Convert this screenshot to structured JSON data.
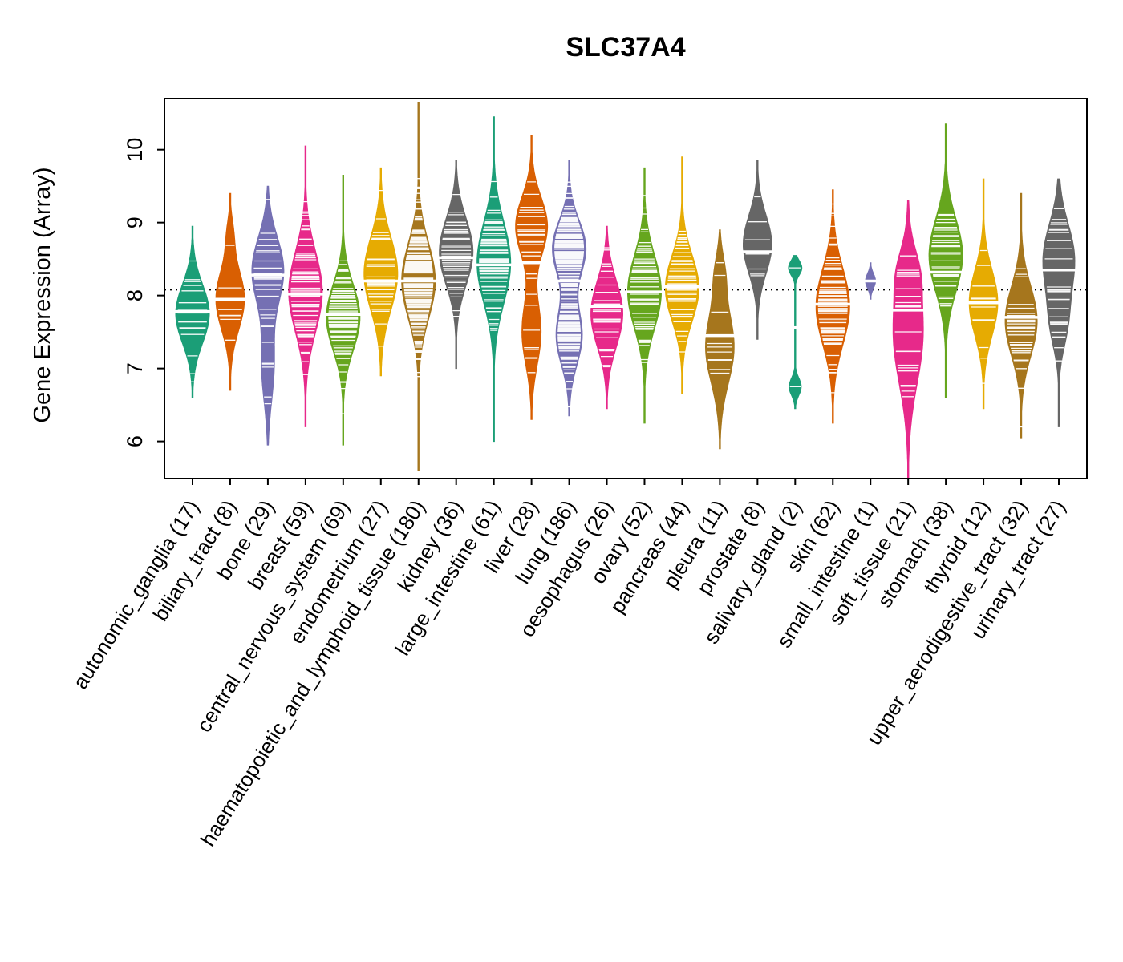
{
  "title": "SLC37A4",
  "chart_data": {
    "type": "violin",
    "title": "SLC37A4",
    "ylabel": "Gene Expression (Array)",
    "xlabel": "",
    "ylim": [
      5.49,
      10.7
    ],
    "yticks": [
      6,
      7,
      8,
      9,
      10
    ],
    "grid": false,
    "legend": "none",
    "reference_line_y": 8.08,
    "palette": [
      "#1B9E77",
      "#D95F02",
      "#7570B3",
      "#E7298A",
      "#66A61E",
      "#E6AB02",
      "#A6761D",
      "#666666"
    ],
    "groups": [
      {
        "label": "autonomic_ganglia",
        "n": 17,
        "color": "#1B9E77",
        "min": 6.6,
        "max": 8.95,
        "median": 7.78,
        "width": 1,
        "modes": [
          {
            "mu": 7.75,
            "s": 0.4,
            "w": 1
          }
        ]
      },
      {
        "label": "biliary_tract",
        "n": 8,
        "color": "#D95F02",
        "min": 6.7,
        "max": 9.4,
        "median": 7.95,
        "width": 0.85,
        "modes": [
          {
            "mu": 7.95,
            "s": 0.42,
            "w": 1
          },
          {
            "mu": 8.85,
            "s": 0.22,
            "w": 0.18
          }
        ]
      },
      {
        "label": "bone",
        "n": 29,
        "color": "#7570B3",
        "min": 5.95,
        "max": 9.5,
        "median": 8.28,
        "width": 0.95,
        "modes": [
          {
            "mu": 8.35,
            "s": 0.45,
            "w": 1
          },
          {
            "mu": 7.05,
            "s": 0.5,
            "w": 0.4
          }
        ]
      },
      {
        "label": "breast",
        "n": 59,
        "color": "#E7298A",
        "min": 6.2,
        "max": 10.05,
        "median": 8.02,
        "width": 1,
        "modes": [
          {
            "mu": 8.05,
            "s": 0.55,
            "w": 1
          }
        ]
      },
      {
        "label": "central_nervous_system",
        "n": 69,
        "color": "#66A61E",
        "min": 5.95,
        "max": 9.65,
        "median": 7.74,
        "width": 1,
        "modes": [
          {
            "mu": 7.7,
            "s": 0.45,
            "w": 1
          }
        ]
      },
      {
        "label": "endometrium",
        "n": 27,
        "color": "#E6AB02",
        "min": 6.9,
        "max": 9.75,
        "median": 8.2,
        "width": 1,
        "modes": [
          {
            "mu": 8.3,
            "s": 0.5,
            "w": 1
          }
        ]
      },
      {
        "label": "haematopoietic_and_lymphoid_tissue",
        "n": 180,
        "color": "#A6761D",
        "min": 5.6,
        "max": 10.65,
        "median": 8.2,
        "width": 1,
        "modes": [
          {
            "mu": 8.2,
            "s": 0.52,
            "w": 1
          }
        ]
      },
      {
        "label": "kidney",
        "n": 36,
        "color": "#666666",
        "min": 7.0,
        "max": 9.85,
        "median": 8.52,
        "width": 1,
        "modes": [
          {
            "mu": 8.6,
            "s": 0.45,
            "w": 1
          }
        ]
      },
      {
        "label": "large_intestine",
        "n": 61,
        "color": "#1B9E77",
        "min": 6.0,
        "max": 10.45,
        "median": 8.42,
        "width": 1,
        "modes": [
          {
            "mu": 8.45,
            "s": 0.55,
            "w": 1
          }
        ]
      },
      {
        "label": "liver",
        "n": 28,
        "color": "#D95F02",
        "min": 6.3,
        "max": 10.2,
        "median": 8.45,
        "width": 0.95,
        "modes": [
          {
            "mu": 8.95,
            "s": 0.4,
            "w": 1
          },
          {
            "mu": 7.5,
            "s": 0.45,
            "w": 0.6
          }
        ]
      },
      {
        "label": "lung",
        "n": 186,
        "color": "#7570B3",
        "min": 6.35,
        "max": 9.85,
        "median": 8.2,
        "width": 1,
        "modes": [
          {
            "mu": 8.65,
            "s": 0.38,
            "w": 1
          },
          {
            "mu": 7.45,
            "s": 0.4,
            "w": 0.78
          }
        ]
      },
      {
        "label": "oesophagus",
        "n": 26,
        "color": "#E7298A",
        "min": 6.45,
        "max": 8.95,
        "median": 7.85,
        "width": 0.95,
        "modes": [
          {
            "mu": 7.75,
            "s": 0.45,
            "w": 1
          }
        ]
      },
      {
        "label": "ovary",
        "n": 52,
        "color": "#66A61E",
        "min": 6.25,
        "max": 9.75,
        "median": 8.05,
        "width": 1,
        "modes": [
          {
            "mu": 8.05,
            "s": 0.5,
            "w": 1
          }
        ]
      },
      {
        "label": "pancreas",
        "n": 44,
        "color": "#E6AB02",
        "min": 6.65,
        "max": 9.9,
        "median": 8.12,
        "width": 1,
        "modes": [
          {
            "mu": 8.1,
            "s": 0.45,
            "w": 1
          }
        ]
      },
      {
        "label": "pleura",
        "n": 11,
        "color": "#A6761D",
        "min": 5.9,
        "max": 8.9,
        "median": 7.45,
        "width": 0.85,
        "modes": [
          {
            "mu": 7.3,
            "s": 0.5,
            "w": 1
          },
          {
            "mu": 8.3,
            "s": 0.28,
            "w": 0.3
          }
        ]
      },
      {
        "label": "prostate",
        "n": 8,
        "color": "#666666",
        "min": 7.4,
        "max": 9.85,
        "median": 8.6,
        "width": 0.85,
        "modes": [
          {
            "mu": 8.7,
            "s": 0.4,
            "w": 1
          }
        ]
      },
      {
        "label": "salivary_gland",
        "n": 2,
        "color": "#1B9E77",
        "min": 6.45,
        "max": 8.55,
        "median": 7.56,
        "width": 0.4,
        "modes": [
          {
            "mu": 8.38,
            "s": 0.1,
            "w": 1
          },
          {
            "mu": 6.75,
            "s": 0.12,
            "w": 0.9
          }
        ]
      },
      {
        "label": "skin",
        "n": 62,
        "color": "#D95F02",
        "min": 6.25,
        "max": 9.45,
        "median": 7.88,
        "width": 1,
        "modes": [
          {
            "mu": 7.85,
            "s": 0.52,
            "w": 1
          }
        ]
      },
      {
        "label": "small_intestine",
        "n": 1,
        "color": "#7570B3",
        "min": 7.95,
        "max": 8.45,
        "median": 8.2,
        "width": 0.3,
        "modes": [
          {
            "mu": 8.2,
            "s": 0.1,
            "w": 1
          }
        ]
      },
      {
        "label": "soft_tissue",
        "n": 21,
        "color": "#E7298A",
        "min": 5.5,
        "max": 9.3,
        "median": 7.8,
        "width": 0.9,
        "modes": [
          {
            "mu": 7.5,
            "s": 0.7,
            "w": 1
          },
          {
            "mu": 8.35,
            "s": 0.3,
            "w": 0.35
          }
        ]
      },
      {
        "label": "stomach",
        "n": 38,
        "color": "#66A61E",
        "min": 6.6,
        "max": 10.35,
        "median": 8.32,
        "width": 1,
        "modes": [
          {
            "mu": 8.55,
            "s": 0.5,
            "w": 1
          }
        ]
      },
      {
        "label": "thyroid",
        "n": 12,
        "color": "#E6AB02",
        "min": 6.45,
        "max": 9.6,
        "median": 7.9,
        "width": 0.85,
        "modes": [
          {
            "mu": 7.9,
            "s": 0.45,
            "w": 1
          }
        ]
      },
      {
        "label": "upper_aerodigestive_tract",
        "n": 32,
        "color": "#A6761D",
        "min": 6.05,
        "max": 9.4,
        "median": 7.7,
        "width": 0.95,
        "modes": [
          {
            "mu": 7.65,
            "s": 0.48,
            "w": 1
          }
        ]
      },
      {
        "label": "urinary_tract",
        "n": 27,
        "color": "#666666",
        "min": 6.2,
        "max": 9.6,
        "median": 8.35,
        "width": 0.95,
        "modes": [
          {
            "mu": 8.5,
            "s": 0.48,
            "w": 1
          },
          {
            "mu": 7.6,
            "s": 0.35,
            "w": 0.45
          }
        ]
      }
    ]
  }
}
